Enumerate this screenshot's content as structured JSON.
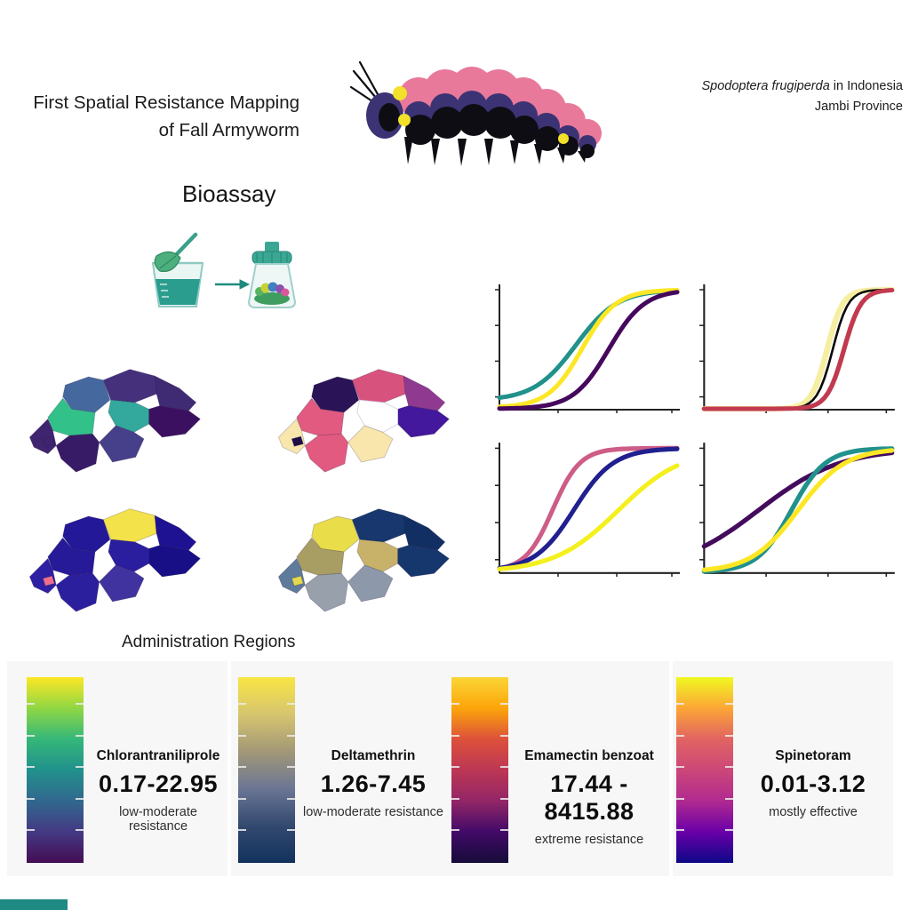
{
  "header": {
    "title_line1": "First Spatial Resistance Mapping",
    "title_line2": "of Fall Armyworm",
    "species_italic": "Spodoptera frugiperda",
    "species_suffix": " in Indonesia",
    "province": "Jambi Province"
  },
  "bioassay": {
    "label": "Bioassay"
  },
  "maps": {
    "caption": "Administration Regions",
    "items": [
      {
        "name": "district-map-1",
        "palette": "viridis",
        "region_colors": [
          "#45699f",
          "#45307c",
          "#3f2a74",
          "#3c1060",
          "#33a89c",
          "#33c18a",
          "#3f2470",
          "#371b66",
          "#463f8a",
          "#3f2470"
        ]
      },
      {
        "name": "district-map-2",
        "palette": "magma",
        "region_colors": [
          "#2a1457",
          "#d8527e",
          "#8f3a90",
          "#44189c",
          "#ffffff",
          "#e25a80",
          "#f8e6ac",
          "#e25a80",
          "#f8e6ac",
          "#1f0d49"
        ]
      },
      {
        "name": "district-map-3",
        "palette": "plasma-dark",
        "region_colors": [
          "#231897",
          "#f3e24a",
          "#1e1292",
          "#180e86",
          "#2b1e9e",
          "#261a98",
          "#2d20a2",
          "#2c1f9e",
          "#41339f",
          "#ee6f8d"
        ]
      },
      {
        "name": "district-map-4",
        "palette": "cividis",
        "region_colors": [
          "#e9dd4a",
          "#17376e",
          "#122f63",
          "#16376e",
          "#c8b269",
          "#a89d63",
          "#5e7b9c",
          "#97a0ab",
          "#8d99aa",
          "#e4d94f"
        ]
      }
    ]
  },
  "chart_data": [
    {
      "type": "line",
      "title": "Dose-response curves, panel 1 (top-left)",
      "xlabel": "",
      "ylabel": "",
      "x_range": [
        0,
        1
      ],
      "y_range": [
        0,
        1
      ],
      "axes_labeled": false,
      "legend": "none",
      "series": [
        {
          "name": "sigmoid-teal",
          "color": "#21918c",
          "midpoint": 0.43,
          "steepness": 8.5,
          "y_start": 0.07,
          "width": 5
        },
        {
          "name": "sigmoid-yellow",
          "color": "#fde725",
          "midpoint": 0.465,
          "steepness": 10.5,
          "y_start": 0.01,
          "width": 5
        },
        {
          "name": "sigmoid-dark-purple",
          "color": "#46085c",
          "midpoint": 0.615,
          "steepness": 10.0,
          "y_start": 0.0,
          "width": 5
        }
      ]
    },
    {
      "type": "line",
      "title": "Dose-response curves, panel 2 (top-right)",
      "xlabel": "",
      "ylabel": "",
      "x_range": [
        0,
        1
      ],
      "y_range": [
        0,
        1
      ],
      "axes_labeled": false,
      "legend": "none",
      "series": [
        {
          "name": "sigmoid-pale-yellow",
          "color": "#f6eea0",
          "midpoint": 0.655,
          "steepness": 24.0,
          "y_start": 0.0,
          "width": 6
        },
        {
          "name": "sigmoid-black",
          "color": "#0a0a0a",
          "midpoint": 0.685,
          "steepness": 24.0,
          "y_start": 0.0,
          "width": 2.5
        },
        {
          "name": "sigmoid-crimson",
          "color": "#c23a50",
          "midpoint": 0.745,
          "steepness": 22.0,
          "y_start": 0.0,
          "width": 5
        }
      ]
    },
    {
      "type": "line",
      "title": "Dose-response curves, panel 3 (bottom-left)",
      "xlabel": "",
      "ylabel": "",
      "x_range": [
        0,
        1
      ],
      "y_range": [
        0,
        1
      ],
      "axes_labeled": false,
      "legend": "none",
      "series": [
        {
          "name": "sigmoid-pink",
          "color": "#cd5d87",
          "midpoint": 0.3,
          "steepness": 13.0,
          "y_start": 0.01,
          "width": 5
        },
        {
          "name": "sigmoid-navy",
          "color": "#20208f",
          "midpoint": 0.42,
          "steepness": 9.0,
          "y_start": 0.01,
          "width": 5
        },
        {
          "name": "sigmoid-yellow",
          "color": "#f4f01f",
          "midpoint": 0.67,
          "steepness": 5.5,
          "y_start": 0.0,
          "width": 5
        }
      ]
    },
    {
      "type": "line",
      "title": "Dose-response curves, panel 4 (bottom-right)",
      "xlabel": "",
      "ylabel": "",
      "x_range": [
        0,
        1
      ],
      "y_range": [
        0,
        1
      ],
      "axes_labeled": false,
      "legend": "none",
      "series": [
        {
          "name": "sigmoid-dark-purple",
          "color": "#440b5c",
          "midpoint": 0.29,
          "steepness": 4.6,
          "y_start": 0.0,
          "width": 5
        },
        {
          "name": "sigmoid-teal",
          "color": "#21918c",
          "midpoint": 0.465,
          "steepness": 11.0,
          "y_start": 0.0,
          "width": 5
        },
        {
          "name": "sigmoid-yellow",
          "color": "#fde725",
          "midpoint": 0.5,
          "steepness": 8.0,
          "y_start": 0.0,
          "width": 5
        }
      ]
    }
  ],
  "legends": {
    "items": [
      {
        "name": "Chlorantraniliprole",
        "range": "0.17-22.95",
        "note": "low-moderate resistance",
        "colors": [
          "#fde725",
          "#90d743",
          "#35b779",
          "#21918c",
          "#31688e",
          "#443983",
          "#440d54"
        ]
      },
      {
        "name": "Deltamethrin",
        "range": "1.26-7.45",
        "note": "low-moderate resistance",
        "colors": [
          "#f9e543",
          "#d6c56f",
          "#a29877",
          "#6b7694",
          "#33496f",
          "#12325e"
        ]
      },
      {
        "name": "Emamectin benzoat",
        "range": "17.44 -  8415.88",
        "note": "extreme resistance",
        "colors": [
          "#fbd636",
          "#fca50a",
          "#dd513a",
          "#bc3754",
          "#932667",
          "#420a68",
          "#160b39"
        ]
      },
      {
        "name": "Spinetoram",
        "range": "0.01-3.12",
        "note": "mostly effective",
        "colors": [
          "#f0f921",
          "#fca636",
          "#e16462",
          "#cc4778",
          "#b12a90",
          "#6a00a8",
          "#0d0887"
        ]
      }
    ]
  },
  "illustration_colors": {
    "caterpillar_pink": "#e8799a",
    "caterpillar_indigo": "#3c3374",
    "caterpillar_black": "#0e0d13",
    "caterpillar_yellow": "#f2e02a",
    "bioassay_teal": "#2a9d8f",
    "footer_accent": "#1f8a84"
  }
}
